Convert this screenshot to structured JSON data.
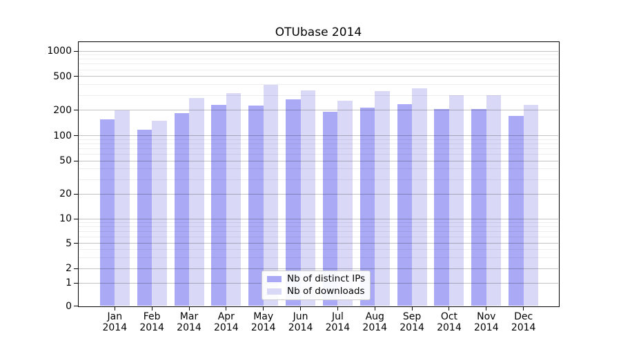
{
  "chart_data": {
    "type": "bar",
    "title": "OTUbase 2014",
    "categories": [
      "Jan",
      "Feb",
      "Mar",
      "Apr",
      "May",
      "Jun",
      "Jul",
      "Aug",
      "Sep",
      "Oct",
      "Nov",
      "Dec"
    ],
    "x_tick_year": "2014",
    "series": [
      {
        "name": "Nb of distinct IPs",
        "color": "#a9a9f5",
        "values": [
          155,
          118,
          185,
          230,
          225,
          270,
          190,
          215,
          235,
          205,
          205,
          170
        ]
      },
      {
        "name": "Nb of downloads",
        "color": "#d9d9f7",
        "values": [
          200,
          150,
          280,
          320,
          395,
          345,
          260,
          335,
          360,
          300,
          300,
          230
        ]
      }
    ],
    "xlabel": "",
    "ylabel": "",
    "y_scale": "symlog",
    "y_ticks": [
      0,
      1,
      2,
      5,
      10,
      20,
      50,
      100,
      200,
      500,
      1000
    ],
    "ylim": [
      0,
      1300
    ],
    "grid": true,
    "legend_position": "lower-center"
  }
}
